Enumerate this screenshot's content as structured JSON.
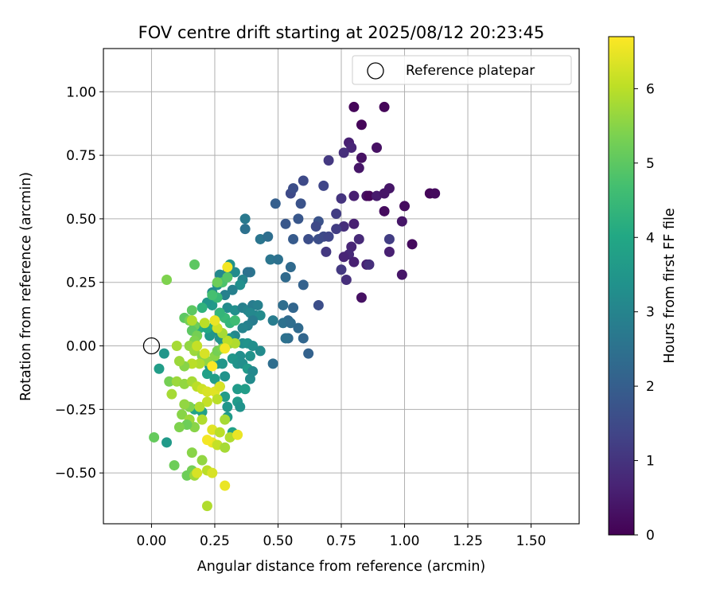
{
  "chart_data": {
    "type": "scatter",
    "title": "FOV centre drift starting at 2025/08/12 20:23:45",
    "xlabel": "Angular distance from reference (arcmin)",
    "ylabel": "Rotation from reference (arcmin)",
    "xlim": [
      -0.19,
      1.69
    ],
    "ylim": [
      -0.7,
      1.17
    ],
    "xticks": [
      0.0,
      0.25,
      0.5,
      0.75,
      1.0,
      1.25,
      1.5
    ],
    "xtick_labels": [
      "0.00",
      "0.25",
      "0.50",
      "0.75",
      "1.00",
      "1.25",
      "1.50"
    ],
    "yticks": [
      -0.5,
      -0.25,
      0.0,
      0.25,
      0.5,
      0.75,
      1.0
    ],
    "ytick_labels": [
      "−0.50",
      "−0.25",
      "0.00",
      "0.25",
      "0.50",
      "0.75",
      "1.00"
    ],
    "grid": true,
    "legend": {
      "placement": "top-right",
      "entries": [
        "Reference platepar"
      ]
    },
    "reference_point": {
      "x": 0.0,
      "y": 0.0
    },
    "colorbar": {
      "label": "Hours from first FF file",
      "colormap": "viridis",
      "range": [
        0,
        6.7
      ],
      "ticks": [
        0,
        1,
        2,
        3,
        4,
        5,
        6
      ],
      "tick_labels": [
        "0",
        "1",
        "2",
        "3",
        "4",
        "5",
        "6"
      ]
    },
    "points": [
      [
        0.8,
        0.94,
        0.1
      ],
      [
        0.92,
        0.94,
        0.1
      ],
      [
        0.83,
        0.87,
        0.1
      ],
      [
        0.83,
        0.74,
        0.3
      ],
      [
        0.89,
        0.78,
        0.3
      ],
      [
        0.82,
        0.7,
        0.4
      ],
      [
        0.78,
        0.8,
        0.6
      ],
      [
        0.79,
        0.78,
        0.7
      ],
      [
        0.76,
        0.76,
        0.9
      ],
      [
        0.7,
        0.73,
        1.1
      ],
      [
        0.94,
        0.62,
        0.4
      ],
      [
        0.85,
        0.59,
        0.3
      ],
      [
        0.86,
        0.59,
        0.1
      ],
      [
        0.89,
        0.59,
        0.5
      ],
      [
        0.92,
        0.6,
        0.4
      ],
      [
        1.0,
        0.55,
        0.2
      ],
      [
        1.1,
        0.6,
        0.1
      ],
      [
        1.12,
        0.6,
        0.2
      ],
      [
        0.92,
        0.53,
        0.2
      ],
      [
        0.99,
        0.49,
        0.4
      ],
      [
        0.8,
        0.59,
        0.6
      ],
      [
        0.75,
        0.58,
        1.0
      ],
      [
        0.68,
        0.63,
        1.4
      ],
      [
        0.6,
        0.65,
        1.5
      ],
      [
        0.55,
        0.6,
        1.5
      ],
      [
        0.56,
        0.62,
        1.6
      ],
      [
        0.49,
        0.56,
        2.0
      ],
      [
        0.59,
        0.56,
        1.7
      ],
      [
        0.58,
        0.5,
        1.8
      ],
      [
        0.53,
        0.48,
        1.8
      ],
      [
        0.66,
        0.49,
        1.7
      ],
      [
        0.73,
        0.52,
        1.2
      ],
      [
        0.8,
        0.48,
        0.6
      ],
      [
        0.76,
        0.47,
        0.9
      ],
      [
        0.65,
        0.47,
        1.5
      ],
      [
        0.62,
        0.42,
        1.6
      ],
      [
        0.56,
        0.42,
        1.9
      ],
      [
        0.66,
        0.42,
        1.6
      ],
      [
        0.68,
        0.43,
        1.5
      ],
      [
        0.7,
        0.43,
        1.4
      ],
      [
        0.73,
        0.46,
        1.2
      ],
      [
        0.82,
        0.42,
        0.8
      ],
      [
        0.94,
        0.42,
        1.2
      ],
      [
        0.79,
        0.39,
        0.7
      ],
      [
        0.94,
        0.37,
        0.6
      ],
      [
        0.78,
        0.36,
        0.8
      ],
      [
        0.76,
        0.35,
        0.7
      ],
      [
        0.69,
        0.37,
        1.1
      ],
      [
        0.8,
        0.33,
        0.6
      ],
      [
        0.85,
        0.32,
        0.6
      ],
      [
        0.86,
        0.32,
        0.9
      ],
      [
        1.03,
        0.4,
        0.2
      ],
      [
        0.99,
        0.28,
        0.4
      ],
      [
        0.75,
        0.3,
        1.1
      ],
      [
        0.77,
        0.26,
        0.9
      ],
      [
        0.83,
        0.19,
        0.3
      ],
      [
        0.37,
        0.5,
        2.7
      ],
      [
        0.37,
        0.46,
        2.5
      ],
      [
        0.43,
        0.42,
        2.6
      ],
      [
        0.46,
        0.43,
        2.4
      ],
      [
        0.47,
        0.34,
        2.6
      ],
      [
        0.5,
        0.34,
        2.5
      ],
      [
        0.55,
        0.31,
        2.3
      ],
      [
        0.53,
        0.27,
        2.3
      ],
      [
        0.6,
        0.24,
        2.1
      ],
      [
        0.66,
        0.16,
        1.6
      ],
      [
        0.56,
        0.15,
        2.2
      ],
      [
        0.52,
        0.16,
        2.4
      ],
      [
        0.54,
        0.1,
        2.3
      ],
      [
        0.52,
        0.09,
        2.5
      ],
      [
        0.55,
        0.09,
        2.4
      ],
      [
        0.58,
        0.07,
        2.3
      ],
      [
        0.48,
        0.1,
        2.8
      ],
      [
        0.54,
        0.03,
        2.3
      ],
      [
        0.53,
        0.03,
        2.5
      ],
      [
        0.6,
        0.03,
        2.2
      ],
      [
        0.62,
        -0.03,
        2.1
      ],
      [
        0.48,
        -0.07,
        2.4
      ],
      [
        0.39,
        0.29,
        2.6
      ],
      [
        0.38,
        0.29,
        2.5
      ],
      [
        0.36,
        0.26,
        3.0
      ],
      [
        0.3,
        0.29,
        2.8
      ],
      [
        0.27,
        0.28,
        3.1
      ],
      [
        0.31,
        0.32,
        3.4
      ],
      [
        0.33,
        0.29,
        3.2
      ],
      [
        0.35,
        0.24,
        3.3
      ],
      [
        0.32,
        0.22,
        2.9
      ],
      [
        0.29,
        0.2,
        2.9
      ],
      [
        0.3,
        0.15,
        3.2
      ],
      [
        0.33,
        0.14,
        3.3
      ],
      [
        0.36,
        0.15,
        2.9
      ],
      [
        0.38,
        0.14,
        3.0
      ],
      [
        0.4,
        0.16,
        2.8
      ],
      [
        0.42,
        0.16,
        2.9
      ],
      [
        0.41,
        0.12,
        3.0
      ],
      [
        0.43,
        0.12,
        3.2
      ],
      [
        0.39,
        0.13,
        3.1
      ],
      [
        0.4,
        0.1,
        2.8
      ],
      [
        0.38,
        0.08,
        2.9
      ],
      [
        0.36,
        0.07,
        3.0
      ],
      [
        0.33,
        0.04,
        3.1
      ],
      [
        0.31,
        0.03,
        3.4
      ],
      [
        0.28,
        0.02,
        3.2
      ],
      [
        0.26,
        0.24,
        3.4
      ],
      [
        0.24,
        0.21,
        3.2
      ],
      [
        0.24,
        0.16,
        3.6
      ],
      [
        0.22,
        0.17,
        3.5
      ],
      [
        0.25,
        0.06,
        3.3
      ],
      [
        0.23,
        0.04,
        3.5
      ],
      [
        0.27,
        0.03,
        3.4
      ],
      [
        0.36,
        0.01,
        3.3
      ],
      [
        0.38,
        0.01,
        3.4
      ],
      [
        0.4,
        0.0,
        3.3
      ],
      [
        0.43,
        -0.02,
        3.2
      ],
      [
        0.39,
        -0.04,
        3.4
      ],
      [
        0.35,
        -0.04,
        3.3
      ],
      [
        0.32,
        -0.05,
        3.5
      ],
      [
        0.34,
        -0.07,
        3.4
      ],
      [
        0.36,
        -0.07,
        3.3
      ],
      [
        0.38,
        -0.09,
        3.6
      ],
      [
        0.4,
        -0.1,
        3.1
      ],
      [
        0.39,
        -0.13,
        3.2
      ],
      [
        0.34,
        -0.17,
        3.6
      ],
      [
        0.37,
        -0.17,
        3.7
      ],
      [
        0.34,
        -0.22,
        3.6
      ],
      [
        0.35,
        -0.24,
        3.4
      ],
      [
        0.3,
        -0.24,
        3.5
      ],
      [
        0.29,
        -0.2,
        3.7
      ],
      [
        0.27,
        -0.16,
        3.6
      ],
      [
        0.25,
        -0.13,
        3.7
      ],
      [
        0.22,
        -0.11,
        3.8
      ],
      [
        0.23,
        -0.08,
        3.5
      ],
      [
        0.26,
        -0.07,
        3.6
      ],
      [
        0.28,
        -0.07,
        3.5
      ],
      [
        0.29,
        -0.12,
        3.4
      ],
      [
        0.3,
        -0.28,
        3.6
      ],
      [
        0.32,
        -0.34,
        3.8
      ],
      [
        0.2,
        -0.26,
        3.8
      ],
      [
        0.17,
        -0.25,
        3.9
      ],
      [
        0.06,
        -0.38,
        3.6
      ],
      [
        0.05,
        -0.03,
        3.5
      ],
      [
        0.03,
        -0.09,
        3.7
      ],
      [
        0.19,
        0.07,
        4.2
      ],
      [
        0.22,
        0.07,
        4.0
      ],
      [
        0.25,
        0.08,
        4.2
      ],
      [
        0.27,
        0.12,
        4.3
      ],
      [
        0.29,
        0.11,
        4.5
      ],
      [
        0.31,
        0.09,
        4.4
      ],
      [
        0.33,
        0.1,
        4.6
      ],
      [
        0.27,
        0.13,
        4.4
      ],
      [
        0.26,
        0.19,
        4.5
      ],
      [
        0.28,
        0.25,
        4.8
      ],
      [
        0.3,
        0.27,
        4.9
      ],
      [
        0.26,
        0.25,
        5.2
      ],
      [
        0.17,
        0.32,
        5.0
      ],
      [
        0.06,
        0.26,
        5.4
      ],
      [
        0.24,
        0.2,
        4.7
      ],
      [
        0.2,
        0.15,
        4.3
      ],
      [
        0.16,
        0.14,
        5.0
      ],
      [
        0.13,
        0.11,
        5.0
      ],
      [
        0.15,
        0.1,
        5.3
      ],
      [
        0.17,
        0.08,
        5.2
      ],
      [
        0.16,
        0.06,
        5.0
      ],
      [
        0.18,
        0.04,
        5.3
      ],
      [
        0.17,
        0.02,
        5.4
      ],
      [
        0.15,
        0.0,
        5.6
      ],
      [
        0.17,
        -0.02,
        5.7
      ],
      [
        0.2,
        -0.04,
        5.5
      ],
      [
        0.22,
        -0.06,
        5.6
      ],
      [
        0.25,
        -0.04,
        5.5
      ],
      [
        0.26,
        -0.02,
        5.3
      ],
      [
        0.28,
        -0.01,
        5.4
      ],
      [
        0.31,
        0.01,
        5.6
      ],
      [
        0.33,
        0.01,
        5.9
      ],
      [
        0.3,
        0.02,
        6.0
      ],
      [
        0.28,
        0.05,
        5.8
      ],
      [
        0.26,
        0.07,
        6.2
      ],
      [
        0.21,
        0.09,
        6.0
      ],
      [
        0.16,
        0.1,
        5.9
      ],
      [
        0.18,
        0.0,
        6.1
      ],
      [
        0.21,
        -0.03,
        6.3
      ],
      [
        0.19,
        -0.07,
        5.9
      ],
      [
        0.16,
        -0.07,
        6.0
      ],
      [
        0.13,
        -0.08,
        5.5
      ],
      [
        0.11,
        -0.06,
        5.7
      ],
      [
        0.1,
        -0.0,
        5.8
      ],
      [
        0.07,
        -0.14,
        5.3
      ],
      [
        0.1,
        -0.14,
        5.7
      ],
      [
        0.13,
        -0.15,
        5.6
      ],
      [
        0.16,
        -0.14,
        5.8
      ],
      [
        0.18,
        -0.16,
        6.0
      ],
      [
        0.2,
        -0.17,
        6.2
      ],
      [
        0.22,
        -0.18,
        6.3
      ],
      [
        0.25,
        -0.18,
        6.4
      ],
      [
        0.27,
        -0.16,
        6.3
      ],
      [
        0.26,
        -0.21,
        6.0
      ],
      [
        0.22,
        -0.22,
        6.1
      ],
      [
        0.19,
        -0.24,
        5.9
      ],
      [
        0.15,
        -0.24,
        5.4
      ],
      [
        0.13,
        -0.23,
        5.6
      ],
      [
        0.12,
        -0.27,
        5.5
      ],
      [
        0.15,
        -0.29,
        5.7
      ],
      [
        0.17,
        -0.32,
        5.5
      ],
      [
        0.14,
        -0.31,
        5.2
      ],
      [
        0.11,
        -0.32,
        5.4
      ],
      [
        0.08,
        -0.19,
        5.8
      ],
      [
        0.2,
        -0.29,
        5.9
      ],
      [
        0.24,
        -0.33,
        6.4
      ],
      [
        0.27,
        -0.34,
        6.0
      ],
      [
        0.29,
        -0.29,
        5.8
      ],
      [
        0.31,
        -0.36,
        5.9
      ],
      [
        0.34,
        -0.35,
        6.5
      ],
      [
        0.24,
        -0.38,
        6.5
      ],
      [
        0.26,
        -0.39,
        6.1
      ],
      [
        0.29,
        -0.4,
        5.8
      ],
      [
        0.16,
        -0.42,
        5.5
      ],
      [
        0.2,
        -0.45,
        5.6
      ],
      [
        0.16,
        -0.49,
        5.3
      ],
      [
        0.14,
        -0.51,
        5.2
      ],
      [
        0.17,
        -0.51,
        5.7
      ],
      [
        0.18,
        -0.5,
        6.3
      ],
      [
        0.22,
        -0.49,
        6.0
      ],
      [
        0.24,
        -0.5,
        6.3
      ],
      [
        0.09,
        -0.47,
        5.2
      ],
      [
        0.01,
        -0.36,
        5.1
      ],
      [
        0.22,
        -0.63,
        5.9
      ],
      [
        0.29,
        -0.55,
        6.5
      ],
      [
        0.3,
        0.31,
        6.6
      ],
      [
        0.25,
        0.1,
        6.5
      ],
      [
        0.22,
        -0.37,
        6.6
      ],
      [
        0.29,
        -0.01,
        6.6
      ],
      [
        0.24,
        -0.08,
        6.7
      ]
    ]
  }
}
